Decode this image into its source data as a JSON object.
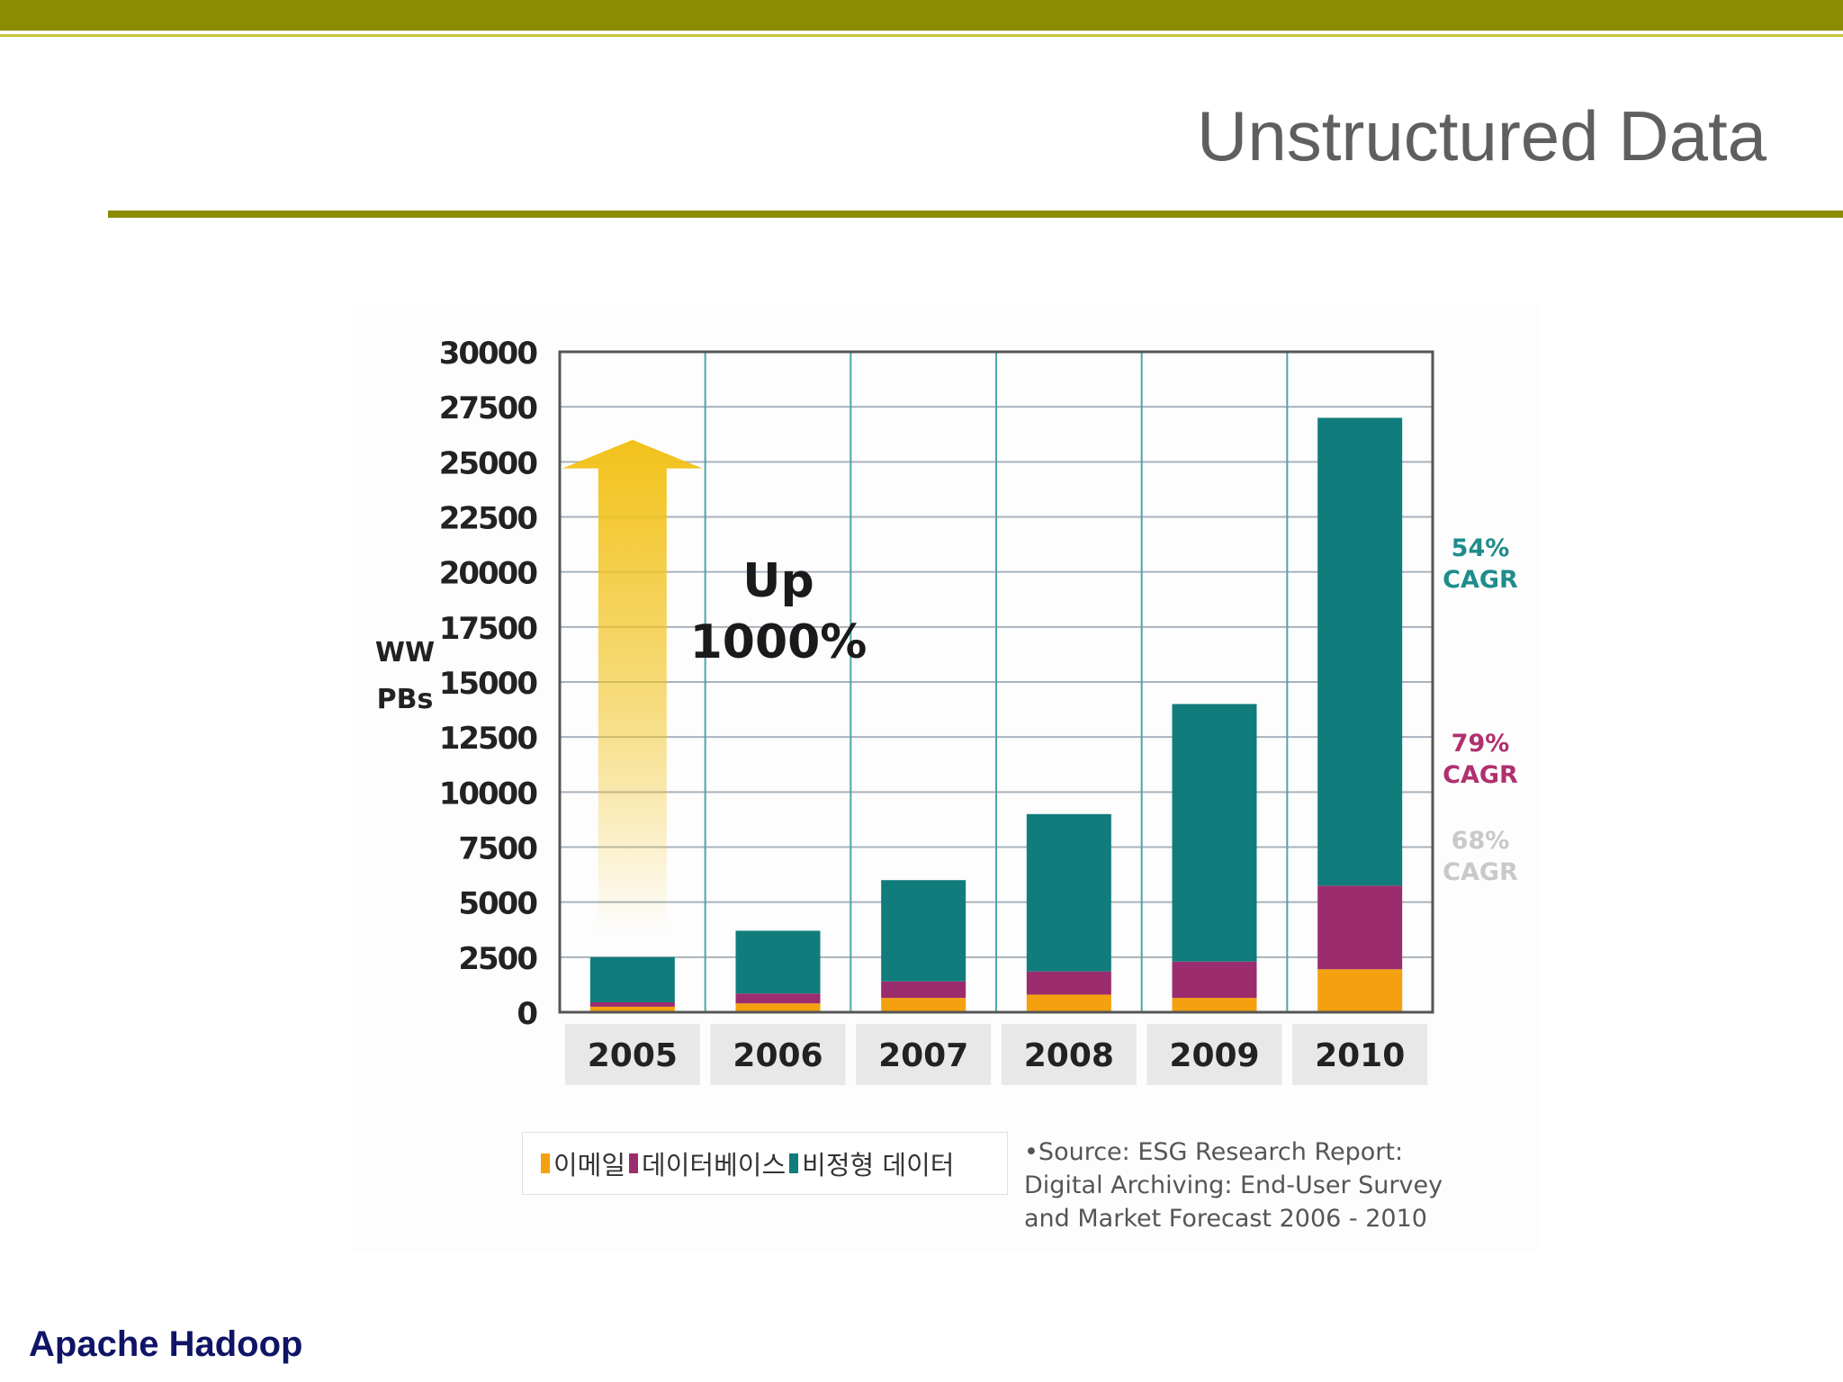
{
  "slide": {
    "title": "Unstructured Data",
    "footer": "Apache Hadoop"
  },
  "colors": {
    "accent_olive": "#8c8c00",
    "email": "#f5a00f",
    "database": "#9b2d6e",
    "unstructured": "#117c7c",
    "arrow": "#f2c21a"
  },
  "annotation": {
    "up_line1": "Up",
    "up_line2": "1000%"
  },
  "cagr": [
    {
      "pct": "54%",
      "label": "CAGR",
      "color": "#1f8c8c"
    },
    {
      "pct": "79%",
      "label": "CAGR",
      "color": "#b0306e"
    },
    {
      "pct": "68%",
      "label": "CAGR",
      "color": "#c9c9c9"
    }
  ],
  "legend": {
    "email": "이메일",
    "database": "데이터베이스",
    "unstructured": "비정형 데이터"
  },
  "source": {
    "line1": "•Source: ESG Research Report:",
    "line2": "Digital Archiving: End-User Survey",
    "line3": "and Market Forecast 2006 - 2010"
  },
  "chart_data": {
    "type": "bar",
    "stacked": true,
    "categories": [
      "2005",
      "2006",
      "2007",
      "2008",
      "2009",
      "2010"
    ],
    "series": [
      {
        "name": "이메일",
        "values": [
          250,
          400,
          650,
          800,
          650,
          1950
        ],
        "color": "#f5a00f"
      },
      {
        "name": "데이터베이스",
        "values": [
          200,
          450,
          750,
          1050,
          1650,
          3800
        ],
        "color": "#9b2d6e"
      },
      {
        "name": "비정형 데이터",
        "values": [
          2050,
          2850,
          4600,
          7150,
          11700,
          21250
        ],
        "color": "#117c7c"
      }
    ],
    "ylabel_line1": "WW",
    "ylabel_line2": "PBs",
    "ylim": [
      0,
      30000
    ],
    "yticks": [
      0,
      2500,
      5000,
      7500,
      10000,
      12500,
      15000,
      17500,
      20000,
      22500,
      25000,
      27500,
      30000
    ],
    "grid": true
  }
}
